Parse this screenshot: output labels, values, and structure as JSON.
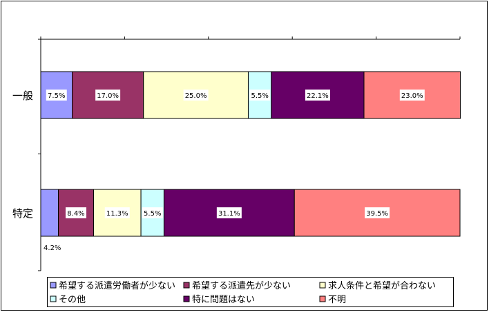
{
  "chart_data": {
    "type": "bar",
    "orientation": "horizontal",
    "stacked": true,
    "percent_stacked": true,
    "categories": [
      "一般",
      "特定"
    ],
    "xlim": [
      0,
      100
    ],
    "grid": false,
    "legend_position": "bottom",
    "series": [
      {
        "name": "希望する派遣労働者が少ない",
        "color": "#9999ff",
        "values": [
          7.5,
          4.2
        ],
        "labels": [
          "7.5%",
          "4.2%"
        ]
      },
      {
        "name": "希望する派遣先が少ない",
        "color": "#993366",
        "values": [
          17.0,
          8.4
        ],
        "labels": [
          "17.0%",
          "8.4%"
        ]
      },
      {
        "name": "求人条件と希望が合わない",
        "color": "#ffffcc",
        "values": [
          25.0,
          11.3
        ],
        "labels": [
          "25.0%",
          "11.3%"
        ]
      },
      {
        "name": "その他",
        "color": "#ccffff",
        "values": [
          5.5,
          5.5
        ],
        "labels": [
          "5.5%",
          "5.5%"
        ]
      },
      {
        "name": "特に問題はない",
        "color": "#660066",
        "values": [
          22.1,
          31.1
        ],
        "labels": [
          "22.1%",
          "31.1%"
        ]
      },
      {
        "name": "不明",
        "color": "#ff8080",
        "values": [
          23.0,
          39.5
        ],
        "labels": [
          "23.0%",
          "39.5%"
        ]
      }
    ]
  }
}
